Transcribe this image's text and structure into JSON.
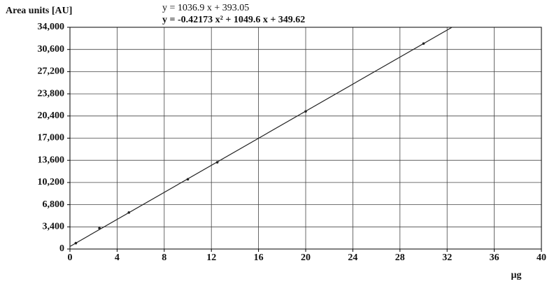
{
  "chart_data": {
    "type": "scatter",
    "y_label": "Area units [AU]",
    "x_label": "µg",
    "annotations": [
      "y = 1036.9 x + 393.05",
      "y = -0.42173 x² + 1049.6 x + 349.62"
    ],
    "series": [
      {
        "mode": "markers",
        "color": "#222",
        "x": [
          0.5,
          2.5,
          5,
          10,
          12.5,
          20,
          30
        ],
        "values": [
          900,
          3200,
          5600,
          10700,
          13300,
          21100,
          31500
        ]
      },
      {
        "mode": "line",
        "color": "#222",
        "x": [
          0,
          32.4
        ],
        "values": [
          393.05,
          33989
        ]
      }
    ],
    "xlim": [
      0,
      40
    ],
    "xticks": [
      0,
      4,
      8,
      12,
      16,
      20,
      24,
      28,
      32,
      36,
      40
    ],
    "ylim": [
      0,
      34000
    ],
    "yticks": [
      0,
      {
        "value": 3400,
        "label": "3,400"
      },
      {
        "value": 6800,
        "label": "6,800"
      },
      {
        "value": 10200,
        "label": "10,200"
      },
      {
        "value": 13600,
        "label": "13,600"
      },
      {
        "value": 17000,
        "label": "17,000"
      },
      {
        "value": 20400,
        "label": "20,400"
      },
      {
        "value": 23800,
        "label": "23,800"
      },
      {
        "value": 27200,
        "label": "27,200"
      },
      {
        "value": 30600,
        "label": "30,600"
      },
      {
        "value": 34000,
        "label": "34,000"
      }
    ],
    "grid": true
  }
}
